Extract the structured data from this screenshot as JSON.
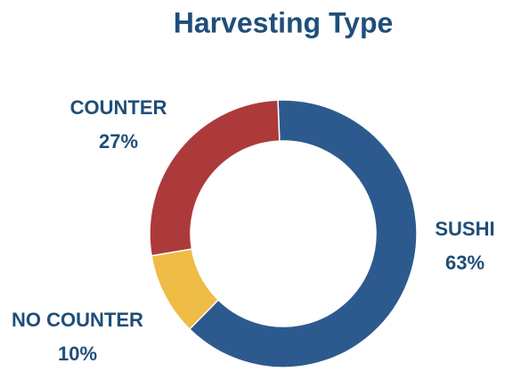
{
  "chart_data": {
    "type": "donut",
    "title": "Harvesting Type",
    "categories": [
      "SUSHI",
      "NO COUNTER",
      "COUNTER"
    ],
    "values": [
      63,
      10,
      27
    ],
    "value_labels": [
      "63%",
      "10%",
      "27%"
    ],
    "colors": [
      "#2d5a8e",
      "#efbc45",
      "#ad3a3b"
    ]
  }
}
